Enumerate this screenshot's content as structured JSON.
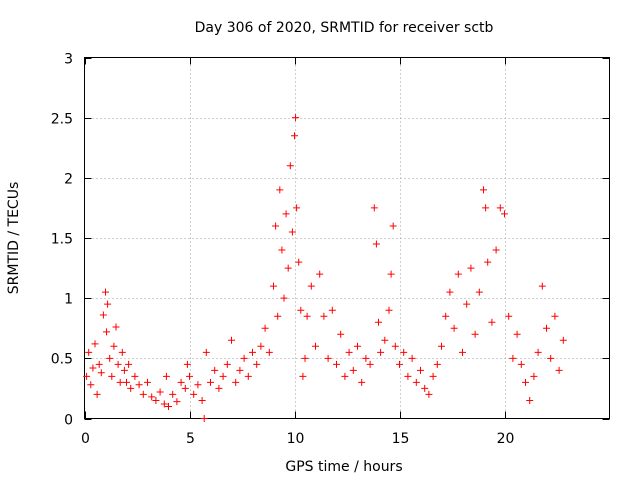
{
  "chart_data": {
    "type": "scatter",
    "title": "Day 306 of 2020, SRMTID for receiver sctb",
    "xlabel": "GPS time / hours",
    "ylabel": "SRMTID / TECUs",
    "xlim": [
      0,
      25
    ],
    "ylim": [
      0,
      3
    ],
    "xticks": [
      0,
      5,
      10,
      15,
      20
    ],
    "xtick_labels": [
      "0",
      "5",
      "10",
      "15",
      "20"
    ],
    "yticks": [
      0,
      0.5,
      1,
      1.5,
      2,
      2.5,
      3
    ],
    "ytick_labels": [
      "0",
      "0.5",
      "1",
      "1.5",
      "2",
      "2.5",
      "3"
    ],
    "grid": true,
    "marker": "+",
    "color": "#ff0000",
    "series": [
      {
        "name": "SRMTID",
        "points": [
          [
            0.1,
            0.35
          ],
          [
            0.2,
            0.55
          ],
          [
            0.3,
            0.28
          ],
          [
            0.4,
            0.42
          ],
          [
            0.5,
            0.62
          ],
          [
            0.6,
            0.2
          ],
          [
            0.7,
            0.45
          ],
          [
            0.8,
            0.38
          ],
          [
            0.9,
            0.86
          ],
          [
            1.0,
            1.05
          ],
          [
            1.05,
            0.72
          ],
          [
            1.1,
            0.95
          ],
          [
            1.2,
            0.5
          ],
          [
            1.3,
            0.35
          ],
          [
            1.4,
            0.6
          ],
          [
            1.5,
            0.76
          ],
          [
            1.6,
            0.45
          ],
          [
            1.7,
            0.3
          ],
          [
            1.8,
            0.55
          ],
          [
            1.9,
            0.4
          ],
          [
            2.0,
            0.3
          ],
          [
            2.1,
            0.45
          ],
          [
            2.2,
            0.25
          ],
          [
            2.4,
            0.35
          ],
          [
            2.6,
            0.28
          ],
          [
            2.8,
            0.2
          ],
          [
            3.0,
            0.3
          ],
          [
            3.2,
            0.18
          ],
          [
            3.4,
            0.15
          ],
          [
            3.6,
            0.22
          ],
          [
            3.8,
            0.12
          ],
          [
            3.9,
            0.35
          ],
          [
            4.0,
            0.1
          ],
          [
            4.2,
            0.2
          ],
          [
            4.4,
            0.14
          ],
          [
            4.6,
            0.3
          ],
          [
            4.8,
            0.25
          ],
          [
            4.9,
            0.45
          ],
          [
            5.0,
            0.35
          ],
          [
            5.2,
            0.2
          ],
          [
            5.4,
            0.28
          ],
          [
            5.6,
            0.15
          ],
          [
            5.7,
            0.0
          ],
          [
            5.8,
            0.55
          ],
          [
            6.0,
            0.3
          ],
          [
            6.2,
            0.4
          ],
          [
            6.4,
            0.25
          ],
          [
            6.6,
            0.35
          ],
          [
            6.8,
            0.45
          ],
          [
            7.0,
            0.65
          ],
          [
            7.2,
            0.3
          ],
          [
            7.4,
            0.4
          ],
          [
            7.6,
            0.5
          ],
          [
            7.8,
            0.35
          ],
          [
            8.0,
            0.55
          ],
          [
            8.2,
            0.45
          ],
          [
            8.4,
            0.6
          ],
          [
            8.6,
            0.75
          ],
          [
            8.8,
            0.55
          ],
          [
            9.0,
            1.1
          ],
          [
            9.1,
            1.6
          ],
          [
            9.2,
            0.85
          ],
          [
            9.3,
            1.9
          ],
          [
            9.4,
            1.4
          ],
          [
            9.5,
            1.0
          ],
          [
            9.6,
            1.7
          ],
          [
            9.7,
            1.25
          ],
          [
            9.8,
            2.1
          ],
          [
            9.9,
            1.55
          ],
          [
            10.0,
            2.35
          ],
          [
            10.05,
            2.5
          ],
          [
            10.1,
            1.75
          ],
          [
            10.2,
            1.3
          ],
          [
            10.3,
            0.9
          ],
          [
            10.4,
            0.35
          ],
          [
            10.5,
            0.5
          ],
          [
            10.6,
            0.85
          ],
          [
            10.8,
            1.1
          ],
          [
            11.0,
            0.6
          ],
          [
            11.2,
            1.2
          ],
          [
            11.4,
            0.85
          ],
          [
            11.6,
            0.5
          ],
          [
            11.8,
            0.9
          ],
          [
            12.0,
            0.45
          ],
          [
            12.2,
            0.7
          ],
          [
            12.4,
            0.35
          ],
          [
            12.6,
            0.55
          ],
          [
            12.8,
            0.4
          ],
          [
            13.0,
            0.6
          ],
          [
            13.2,
            0.3
          ],
          [
            13.4,
            0.5
          ],
          [
            13.6,
            0.45
          ],
          [
            13.8,
            1.75
          ],
          [
            13.9,
            1.45
          ],
          [
            14.0,
            0.8
          ],
          [
            14.1,
            0.55
          ],
          [
            14.3,
            0.65
          ],
          [
            14.5,
            0.9
          ],
          [
            14.6,
            1.2
          ],
          [
            14.7,
            1.6
          ],
          [
            14.8,
            0.6
          ],
          [
            15.0,
            0.45
          ],
          [
            15.2,
            0.55
          ],
          [
            15.4,
            0.35
          ],
          [
            15.6,
            0.5
          ],
          [
            15.8,
            0.3
          ],
          [
            16.0,
            0.4
          ],
          [
            16.2,
            0.25
          ],
          [
            16.4,
            0.2
          ],
          [
            16.6,
            0.35
          ],
          [
            16.8,
            0.45
          ],
          [
            17.0,
            0.6
          ],
          [
            17.2,
            0.85
          ],
          [
            17.4,
            1.05
          ],
          [
            17.6,
            0.75
          ],
          [
            17.8,
            1.2
          ],
          [
            18.0,
            0.55
          ],
          [
            18.2,
            0.95
          ],
          [
            18.4,
            1.25
          ],
          [
            18.6,
            0.7
          ],
          [
            18.8,
            1.05
          ],
          [
            19.0,
            1.9
          ],
          [
            19.1,
            1.75
          ],
          [
            19.2,
            1.3
          ],
          [
            19.4,
            0.8
          ],
          [
            19.6,
            1.4
          ],
          [
            19.8,
            1.75
          ],
          [
            20.0,
            1.7
          ],
          [
            20.2,
            0.85
          ],
          [
            20.4,
            0.5
          ],
          [
            20.6,
            0.7
          ],
          [
            20.8,
            0.45
          ],
          [
            21.0,
            0.3
          ],
          [
            21.2,
            0.15
          ],
          [
            21.4,
            0.35
          ],
          [
            21.6,
            0.55
          ],
          [
            21.8,
            1.1
          ],
          [
            22.0,
            0.75
          ],
          [
            22.2,
            0.5
          ],
          [
            22.4,
            0.85
          ],
          [
            22.6,
            0.4
          ],
          [
            22.8,
            0.65
          ]
        ]
      }
    ]
  }
}
